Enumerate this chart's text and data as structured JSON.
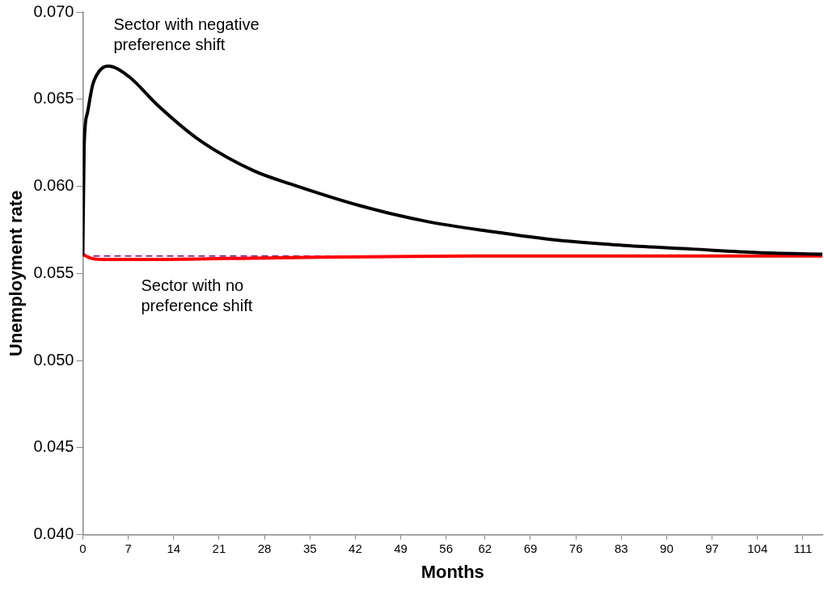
{
  "chart_data": {
    "type": "line",
    "xlabel": "Months",
    "ylabel": "Unemployment rate",
    "xlim": [
      0,
      114
    ],
    "ylim": [
      0.04,
      0.07
    ],
    "xticks": [
      0,
      7,
      14,
      21,
      28,
      35,
      42,
      49,
      56,
      62,
      69,
      76,
      83,
      90,
      97,
      104,
      111
    ],
    "yticks": [
      {
        "value": 0.04,
        "label": "0.040"
      },
      {
        "value": 0.045,
        "label": "0.045"
      },
      {
        "value": 0.05,
        "label": "0.050"
      },
      {
        "value": 0.055,
        "label": "0.055"
      },
      {
        "value": 0.06,
        "label": "0.060"
      },
      {
        "value": 0.065,
        "label": "0.065"
      },
      {
        "value": 0.07,
        "label": "0.070"
      }
    ],
    "grid": false,
    "legend": false,
    "marker": "none",
    "line_style": "solid",
    "ref_lines": [
      {
        "axis": "y",
        "value": 0.056,
        "color": "#800080",
        "line_style": "dashed"
      }
    ],
    "series": [
      {
        "name": "Sector with negative preference shift",
        "color": "#000000",
        "x": [
          0,
          0.2,
          0.7,
          1.5,
          2.5,
          3.9,
          7.1,
          11.4,
          17.8,
          26.3,
          32.3,
          42.6,
          52.8,
          63,
          73.3,
          83.6,
          93.8,
          104,
          114
        ],
        "values": [
          0.0561,
          0.0623,
          0.0642,
          0.0658,
          0.0666,
          0.0669,
          0.0663,
          0.0647,
          0.0627,
          0.0609,
          0.0601,
          0.0589,
          0.058,
          0.0574,
          0.0569,
          0.0566,
          0.0564,
          0.0562,
          0.0561
        ]
      },
      {
        "name": "Sector with no preference shift",
        "color": "#ff0000",
        "x": [
          0,
          1,
          3,
          10,
          30,
          60,
          114
        ],
        "values": [
          0.0561,
          0.0559,
          0.0558,
          0.0558,
          0.0559,
          0.056,
          0.056
        ]
      }
    ]
  }
}
